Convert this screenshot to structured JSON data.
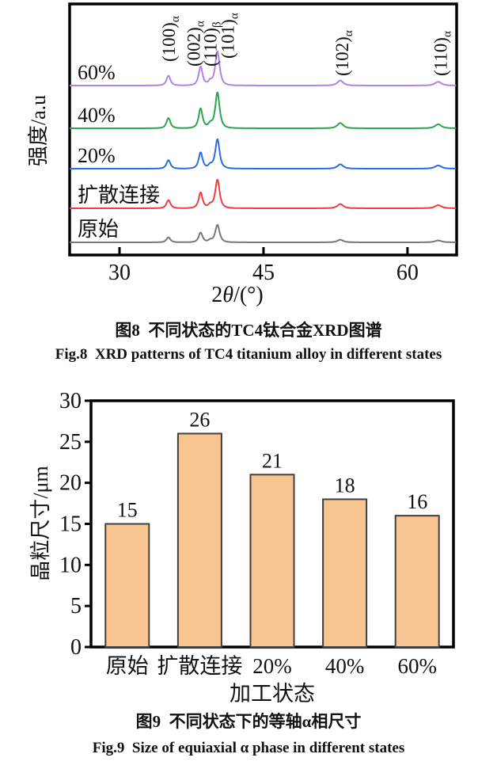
{
  "page": {
    "background": "#ffffff"
  },
  "chart_data": [
    {
      "type": "line",
      "title_cn": "图8  不同状态的TC4钛合金XRD图谱",
      "title_en": "Fig.8  XRD patterns of TC4 titanium alloy in different states",
      "xlabel_prefix": "2",
      "xlabel_italic": "θ",
      "xlabel_suffix": "/(°)",
      "ylabel": "强度/a.u",
      "x_ticks": [
        30,
        45,
        60
      ],
      "x_range": [
        24.8,
        65.1
      ],
      "grid": false,
      "legend_position": "labels-on-traces",
      "series": [
        {
          "name": "60%",
          "color": "#b283e2",
          "peak_scale": 43
        },
        {
          "name": "40%",
          "color": "#2ea353",
          "peak_scale": 45
        },
        {
          "name": "20%",
          "color": "#2b6be0",
          "peak_scale": 37
        },
        {
          "name": "扩散连接",
          "color": "#ef3d41",
          "peak_scale": 36
        },
        {
          "name": "原始",
          "color": "#787878",
          "peak_scale": 22
        }
      ],
      "peaks": [
        {
          "two_theta": 35.1,
          "hkl": "(100)",
          "phase": "α",
          "rel_intensity": 0.29,
          "width_deg": 0.3
        },
        {
          "two_theta": 38.45,
          "hkl": "(002)",
          "phase": "α",
          "rel_intensity": 0.55,
          "width_deg": 0.3
        },
        {
          "two_theta": 39.45,
          "hkl": "(110)",
          "phase": "β",
          "rel_intensity": 0.11,
          "width_deg": 0.28
        },
        {
          "two_theta": 40.2,
          "hkl": "(101)",
          "phase": "α",
          "rel_intensity": 1.0,
          "width_deg": 0.33
        },
        {
          "two_theta": 53.0,
          "hkl": "(102)",
          "phase": "α",
          "rel_intensity": 0.15,
          "width_deg": 0.45
        },
        {
          "two_theta": 63.2,
          "hkl": "(110)",
          "phase": "α",
          "rel_intensity": 0.11,
          "width_deg": 0.5
        }
      ]
    },
    {
      "type": "bar",
      "title_cn": "图9  不同状态下的等轴α相尺寸",
      "title_en": "Fig.9  Size of equiaxial α phase in different states",
      "xlabel": "加工状态",
      "ylabel": "晶粒尺寸/μm",
      "categories": [
        "原始",
        "扩散连接",
        "20%",
        "40%",
        "60%"
      ],
      "values": [
        15,
        26,
        21,
        18,
        16
      ],
      "ylim": [
        0,
        30
      ],
      "y_tick_step": 5,
      "grid": false,
      "bar_fill": "#f8c48f",
      "bar_stroke": "#3f3f3f"
    }
  ]
}
